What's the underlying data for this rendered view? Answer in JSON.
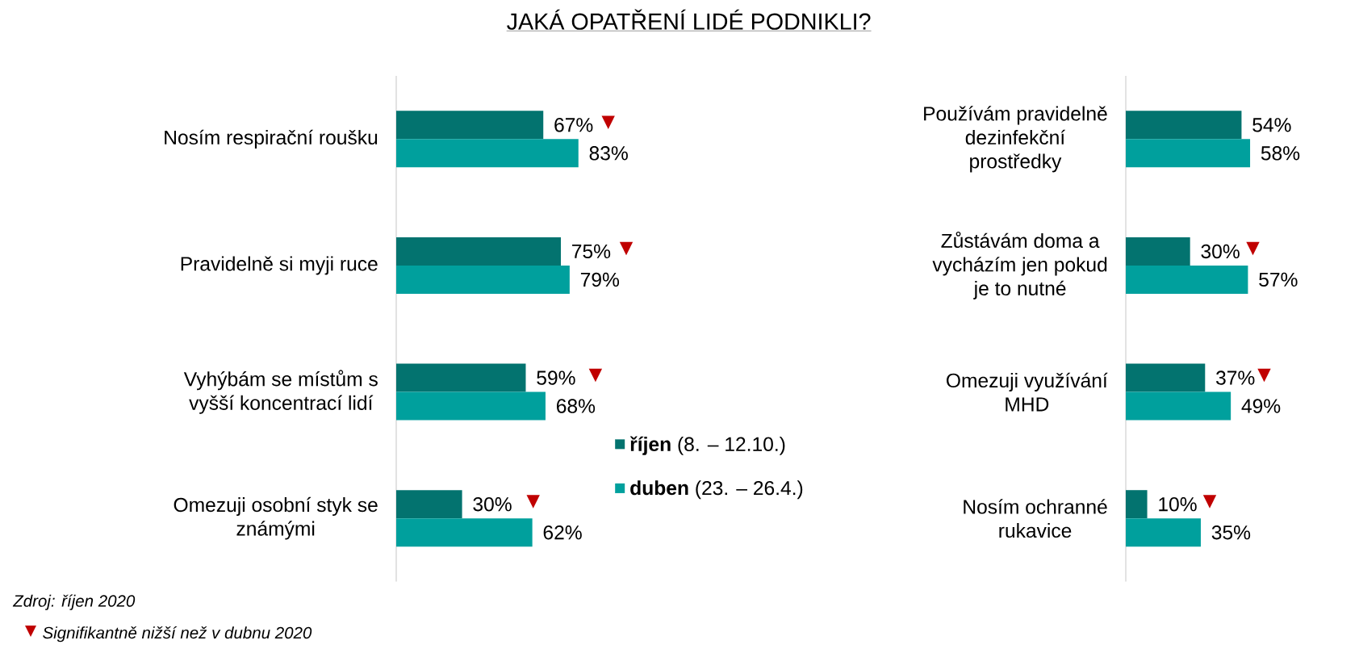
{
  "chart_data": [
    {
      "type": "bar",
      "orientation": "horizontal",
      "title": "JAKÁ OPATŘENÍ LIDÉ PODNIKLI?",
      "categories": [
        "Nosím respirační roušku",
        "Pravidelně si myji ruce",
        "Vyhýbám se místům s vyšší koncentrací lidí",
        "Omezuji osobní styk se známými"
      ],
      "series": [
        {
          "name": "**říjen** (8. – 12.10.)",
          "color": "#03736f",
          "values": [
            67,
            75,
            59,
            30
          ],
          "value_labels": [
            "67%",
            "75%",
            "59%",
            "30%"
          ]
        },
        {
          "name": "**duben** (23. – 26.4.)",
          "color": "#00a09d",
          "values": [
            83,
            79,
            68,
            62
          ],
          "value_labels": [
            "83%",
            "79%",
            "68%",
            "62%"
          ]
        }
      ],
      "tick_labels": "y",
      "legend": "bottom right",
      "annotations": [
        "Zdroj: říjen 2020",
        "▼",
        "Signifikantně nižší než v dubnu 2020",
        "▼",
        "▼",
        "▼",
        "▼"
      ]
    },
    {
      "type": "bar",
      "orientation": "horizontal",
      "categories": [
        "Používám pravidelně dezinfekční prostředky",
        "Zůstávám doma a vycházím jen pokud je to nutné",
        "Omezuji využívání MHD",
        "Nosím ochranné rukavice"
      ],
      "series": [
        {
          "color": "#03736f",
          "values": [
            54,
            30,
            37,
            10
          ],
          "value_labels": [
            "54%",
            "30%",
            "37%",
            "10%"
          ]
        },
        {
          "color": "#00a09d",
          "values": [
            58,
            57,
            49,
            35
          ],
          "value_labels": [
            "58%",
            "57%",
            "49%",
            "35%"
          ]
        }
      ],
      "tick_labels": "y",
      "annotations": [
        "▼",
        "▼",
        "▼"
      ]
    }
  ]
}
